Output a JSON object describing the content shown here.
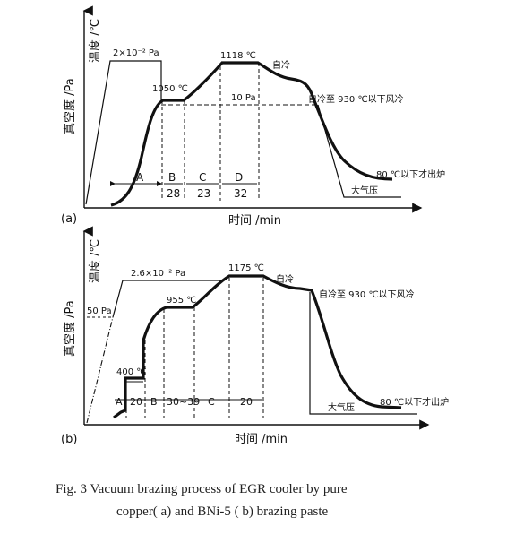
{
  "chart_data": [
    {
      "panel": "(a)",
      "type": "line",
      "ylabel_temperature": "温度 /℃",
      "ylabel_vacuum": "真空度 /Pa",
      "xlabel": "时间 /min",
      "annotations": {
        "vacuum_level_high": "2×10⁻² Pa",
        "vacuum_level_low": "10 Pa",
        "temp_1": "1050 ℃",
        "temp_2": "1118 ℃",
        "self_cool": "自冷",
        "self_cool_fan": "自冷至 930 ℃以下风冷",
        "unload": "80 ℃以下才出炉",
        "atmosphere": "大气压"
      },
      "stages": [
        "A",
        "B",
        "C",
        "D"
      ],
      "stage_durations": [
        "",
        "28",
        "23",
        "32"
      ]
    },
    {
      "panel": "(b)",
      "type": "line",
      "ylabel_temperature": "温度 /℃",
      "ylabel_vacuum": "真空度 /Pa",
      "xlabel": "时间 /min",
      "annotations": {
        "vacuum_level_high": "2.6×10⁻² Pa",
        "vacuum_level_low": "50 Pa",
        "temp_1": "400 ℃",
        "temp_2": "955 ℃",
        "temp_3": "1175 ℃",
        "self_cool": "自冷",
        "self_cool_fan": "自冷至 930 ℃以下风冷",
        "unload": "80 ℃以下才出炉",
        "atmosphere": "大气压"
      },
      "stages": [
        "A",
        "B",
        "C"
      ],
      "stage_durations": [
        "20",
        "30~39",
        "20"
      ]
    }
  ],
  "caption": {
    "line1": "Fig. 3    Vacuum  brazing process of EGR  cooler by pure",
    "line2": "copper( a)  and BNi-5 ( b)  brazing paste"
  }
}
